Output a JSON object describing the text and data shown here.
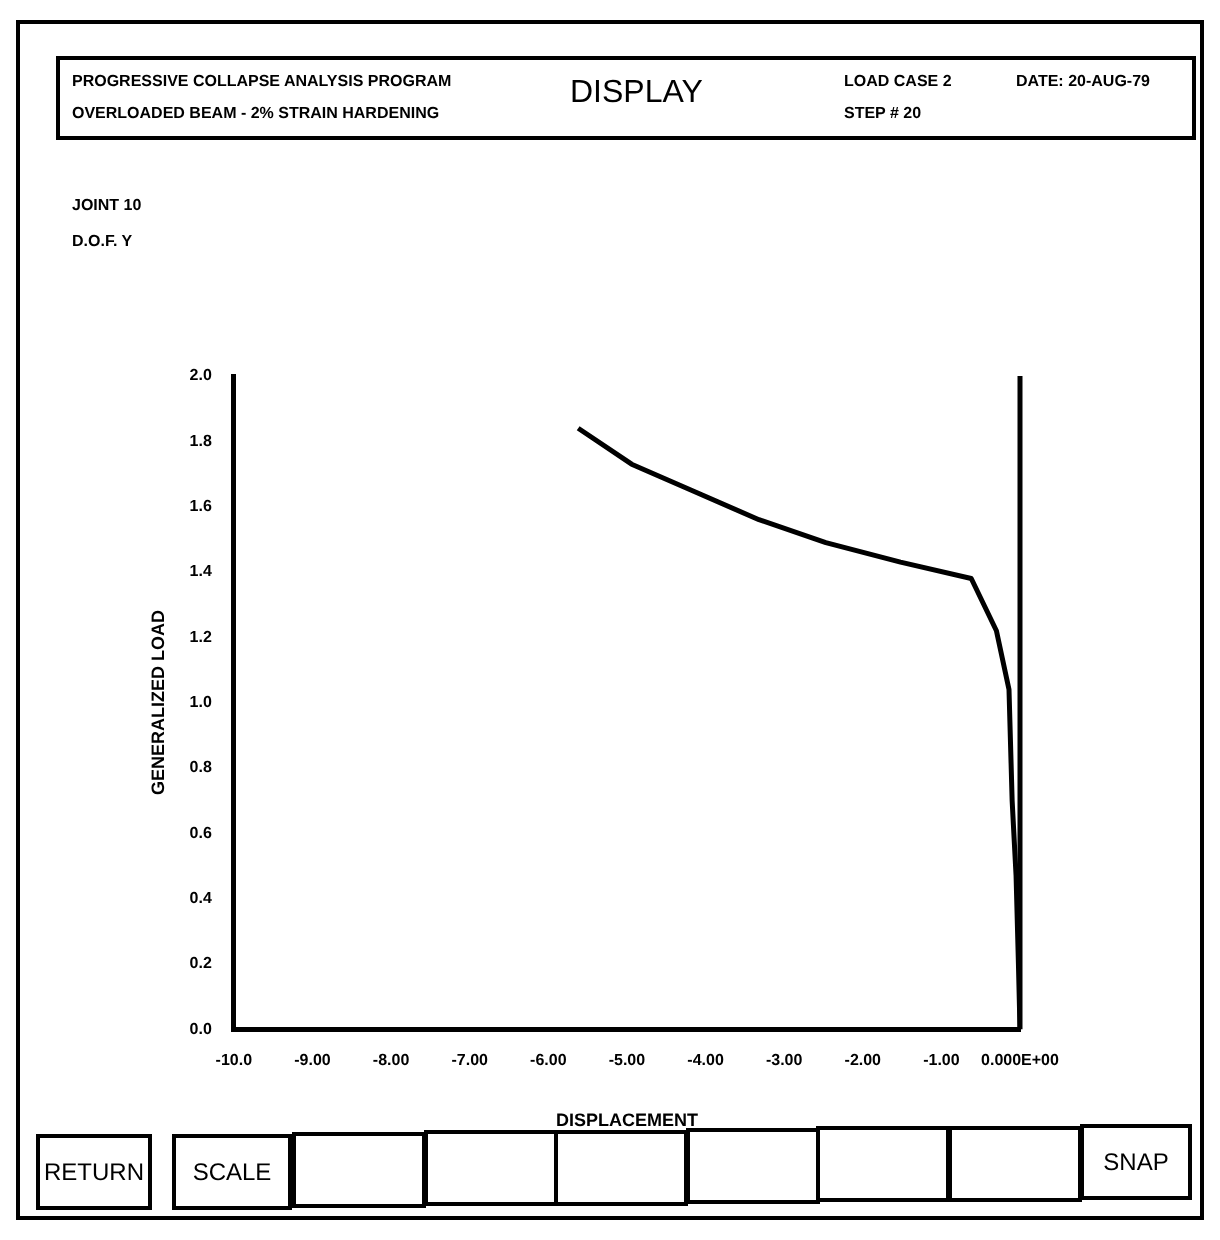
{
  "chart_data": {
    "type": "line",
    "title": "DISPLAY",
    "annotations": [
      "PROGRESSIVE COLLAPSE ANALYSIS PROGRAM",
      "OVERLOADED BEAM - 2% STRAIN HARDENING",
      "LOAD CASE 2",
      "STEP # 20",
      "DATE: 20-AUG-79",
      "JOINT 10",
      "D.O.F. Y",
      "RETURN",
      "SCALE",
      "SNAP"
    ],
    "xlabel": "DISPLACEMENT",
    "ylabel": "GENERALIZED LOAD",
    "series": [
      {
        "color": "#000000",
        "x": [
          -5.62,
          -4.94,
          -4.18,
          -3.32,
          -2.47,
          -1.52,
          -0.62,
          -0.3,
          -0.14,
          -0.1,
          -0.05,
          -0.02,
          0
        ],
        "values": [
          1.84,
          1.73,
          1.65,
          1.56,
          1.49,
          1.43,
          1.38,
          1.22,
          1.04,
          0.7,
          0.47,
          0.2,
          0
        ]
      }
    ],
    "xlim": [
      -10,
      0
    ],
    "xticks": [
      {
        "value": -10,
        "label": "-10.0"
      },
      {
        "value": -9,
        "label": "-9.00"
      },
      {
        "value": -8,
        "label": "-8.00"
      },
      {
        "value": -7,
        "label": "-7.00"
      },
      {
        "value": -6,
        "label": "-6.00"
      },
      {
        "value": -5,
        "label": "-5.00"
      },
      {
        "value": -4,
        "label": "-4.00"
      },
      {
        "value": -3,
        "label": "-3.00"
      },
      {
        "value": -2,
        "label": "-2.00"
      },
      {
        "value": -1,
        "label": "-1.00"
      },
      {
        "value": 0,
        "label": "0.000E+00"
      }
    ],
    "ylim": [
      0,
      2
    ],
    "yticks": [
      {
        "value": 0,
        "label": "0.0"
      },
      {
        "value": 0.2,
        "label": "0.2"
      },
      {
        "value": 0.4,
        "label": "0.4"
      },
      {
        "value": 0.6,
        "label": "0.6"
      },
      {
        "value": 0.8,
        "label": "0.8"
      },
      {
        "value": 1,
        "label": "1.0"
      },
      {
        "value": 1.2,
        "label": "1.2"
      },
      {
        "value": 1.4,
        "label": "1.4"
      },
      {
        "value": 1.6,
        "label": "1.6"
      },
      {
        "value": 1.8,
        "label": "1.8"
      },
      {
        "value": 2,
        "label": "2.0"
      }
    ],
    "ref_lines": [
      {
        "axis": "x",
        "value": 0,
        "color": "#000000"
      }
    ],
    "grid": false,
    "legend": false,
    "marker": "none",
    "line_style": "solid"
  }
}
